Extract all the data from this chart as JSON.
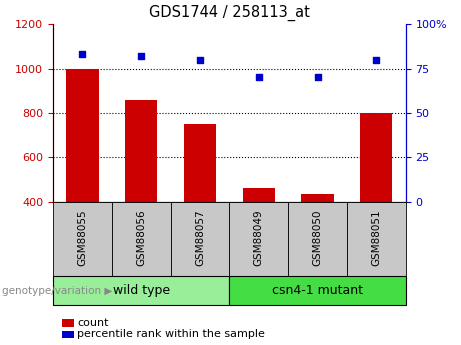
{
  "title": "GDS1744 / 258113_at",
  "categories": [
    "GSM88055",
    "GSM88056",
    "GSM88057",
    "GSM88049",
    "GSM88050",
    "GSM88051"
  ],
  "bar_values": [
    1000,
    860,
    750,
    462,
    435,
    800
  ],
  "scatter_values": [
    83,
    82,
    80,
    70,
    70,
    80
  ],
  "ylim_left": [
    400,
    1200
  ],
  "ylim_right": [
    0,
    100
  ],
  "bar_color": "#cc0000",
  "scatter_color": "#0000cc",
  "group1_label": "wild type",
  "group2_label": "csn4-1 mutant",
  "group1_color": "#99ee99",
  "group2_color": "#44dd44",
  "group_bg_color": "#c8c8c8",
  "legend_count_label": "count",
  "legend_pct_label": "percentile rank within the sample",
  "left_yticks": [
    400,
    600,
    800,
    1000,
    1200
  ],
  "right_yticks": [
    0,
    25,
    50,
    75,
    100
  ],
  "right_ytick_labels": [
    "0",
    "25",
    "50",
    "75",
    "100%"
  ],
  "dotted_yvals": [
    600,
    800,
    1000
  ]
}
